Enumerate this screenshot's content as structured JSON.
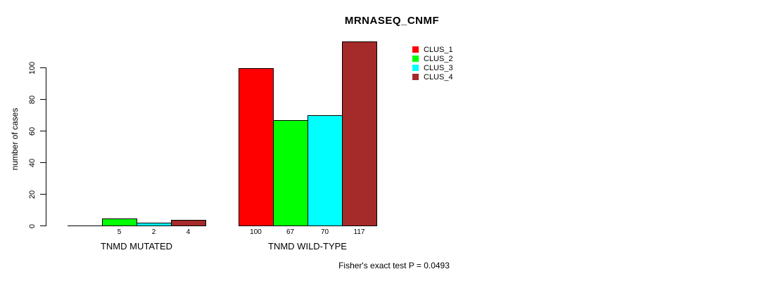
{
  "chart_data": {
    "type": "bar",
    "title": "MRNASEQ_CNMF",
    "xlabel": "",
    "ylabel": "number of cases",
    "ylim": [
      0,
      100
    ],
    "yticks": [
      0,
      20,
      40,
      60,
      80,
      100
    ],
    "grid": false,
    "categories": [
      "TNMD MUTATED",
      "TNMD WILD-TYPE"
    ],
    "series": [
      {
        "name": "CLUS_1",
        "color": "#ff0000",
        "values": [
          0,
          100
        ]
      },
      {
        "name": "CLUS_2",
        "color": "#00ff00",
        "values": [
          5,
          67
        ]
      },
      {
        "name": "CLUS_3",
        "color": "#00ffff",
        "values": [
          2,
          70
        ]
      },
      {
        "name": "CLUS_4",
        "color": "#a52a2a",
        "values": [
          4,
          117
        ]
      }
    ],
    "bar_labels": [
      [
        "",
        "5",
        "2",
        "4"
      ],
      [
        "100",
        "67",
        "70",
        "117"
      ]
    ],
    "legend_position": "top-right",
    "annotation": "Fisher's exact test P = 0.0493",
    "colors": {
      "background": "#ffffff",
      "axis": "#000000",
      "text": "#000000"
    }
  }
}
